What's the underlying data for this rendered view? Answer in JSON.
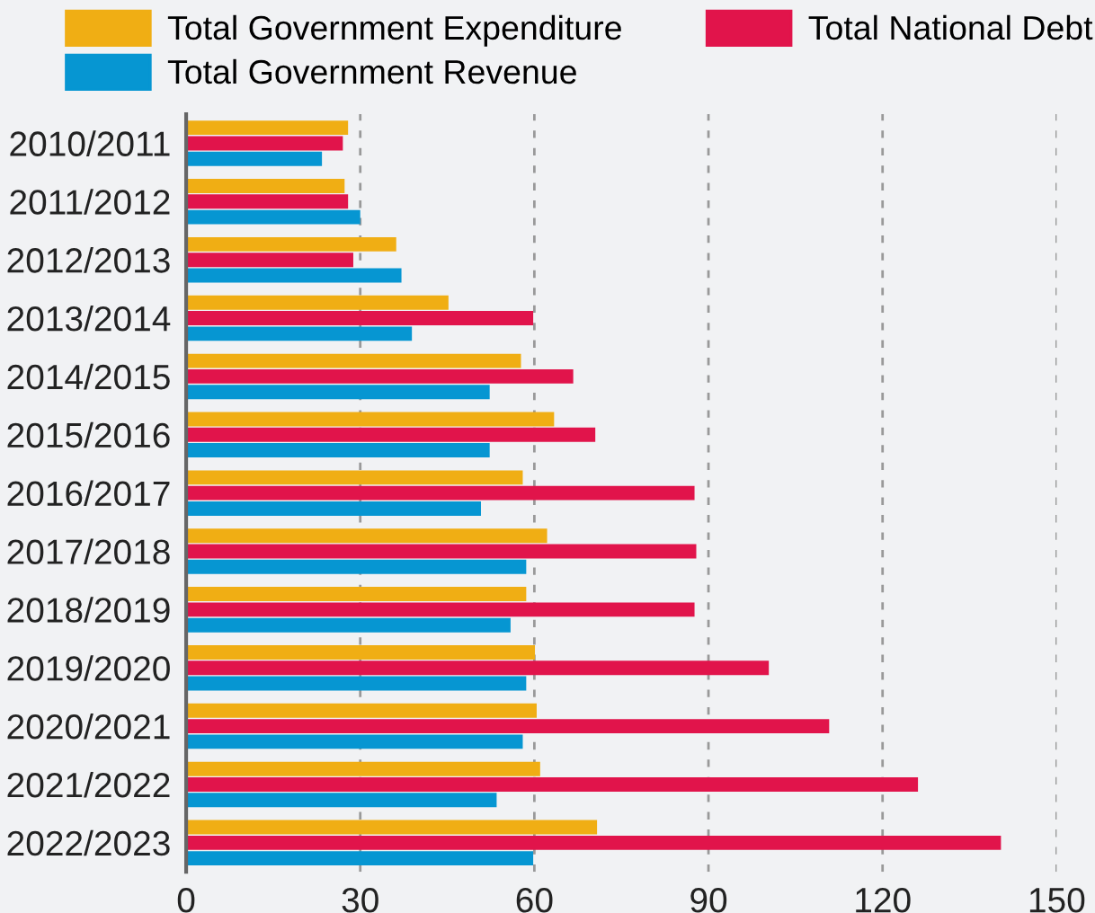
{
  "chart_data": {
    "type": "bar",
    "orientation": "horizontal",
    "categories": [
      "2010/2011",
      "2011/2012",
      "2012/2013",
      "2013/2014",
      "2014/2015",
      "2015/2016",
      "2016/2017",
      "2017/2018",
      "2018/2019",
      "2019/2020",
      "2020/2021",
      "2021/2022",
      "2022/2023"
    ],
    "series": [
      {
        "name": "Total Government Expenditure",
        "color": "#f0ae14",
        "values": [
          27.9,
          27.3,
          36.2,
          45.2,
          57.7,
          63.4,
          58.0,
          62.2,
          58.6,
          60.1,
          60.4,
          61.0,
          70.8
        ]
      },
      {
        "name": "Total National Debt",
        "color": "#e1144b",
        "values": [
          27.0,
          27.9,
          28.8,
          59.8,
          66.7,
          70.5,
          87.6,
          87.9,
          87.6,
          100.4,
          110.8,
          126.1,
          140.4
        ]
      },
      {
        "name": "Total Government Revenue",
        "color": "#0696d2",
        "values": [
          23.4,
          30.0,
          37.1,
          38.9,
          52.3,
          52.3,
          50.8,
          58.6,
          55.9,
          58.6,
          58.0,
          53.5,
          59.8
        ]
      }
    ],
    "xlim": [
      0,
      150
    ],
    "xticks": [
      0,
      30,
      60,
      90,
      120,
      150
    ],
    "grid": "x",
    "legend": "top"
  }
}
